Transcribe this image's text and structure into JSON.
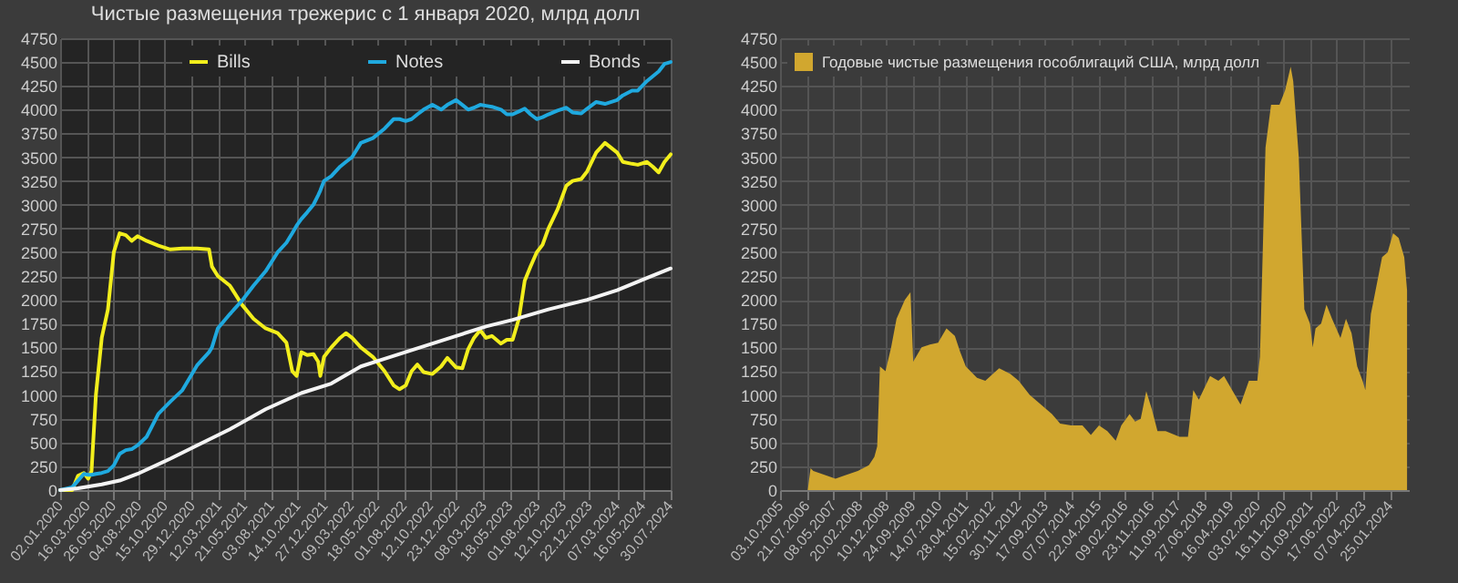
{
  "chart_data": [
    {
      "type": "line",
      "title": "Чистые размещения трежерис с 1 января 2020, млрд долл",
      "legend": "top",
      "grid": true,
      "line_style": "solid",
      "marker": "none",
      "x": [
        "2020-01-02",
        "2020-02-04",
        "2020-02-20",
        "2020-03-07",
        "2020-03-19",
        "2020-03-28",
        "2020-04-09",
        "2020-04-25",
        "2020-05-12",
        "2020-05-28",
        "2020-06-13",
        "2020-06-30",
        "2020-07-16",
        "2020-08-01",
        "2020-08-26",
        "2020-09-27",
        "2020-10-30",
        "2020-12-02",
        "2021-01-11",
        "2021-02-13",
        "2021-02-21",
        "2021-03-09",
        "2021-04-11",
        "2021-05-14",
        "2021-06-15",
        "2021-07-18",
        "2021-08-20",
        "2021-09-13",
        "2021-09-29",
        "2021-10-11",
        "2021-10-24",
        "2021-11-09",
        "2021-11-26",
        "2021-12-09",
        "2021-12-15",
        "2021-12-25",
        "2022-01-14",
        "2022-02-07",
        "2022-02-23",
        "2022-03-12",
        "2022-04-05",
        "2022-05-08",
        "2022-06-09",
        "2022-07-04",
        "2022-07-20",
        "2022-08-06",
        "2022-08-22",
        "2022-09-07",
        "2022-09-24",
        "2022-10-18",
        "2022-11-11",
        "2022-11-28",
        "2022-12-22",
        "2023-01-08",
        "2023-01-24",
        "2023-02-09",
        "2023-02-26",
        "2023-03-14",
        "2023-03-30",
        "2023-04-24",
        "2023-05-10",
        "2023-05-26",
        "2023-06-12",
        "2023-06-28",
        "2023-07-14",
        "2023-07-31",
        "2023-08-16",
        "2023-09-01",
        "2023-09-26",
        "2023-10-20",
        "2023-11-06",
        "2023-11-30",
        "2023-12-16",
        "2024-01-10",
        "2024-02-03",
        "2024-03-07",
        "2024-03-23",
        "2024-04-17",
        "2024-05-03",
        "2024-05-28",
        "2024-06-13",
        "2024-06-29",
        "2024-07-15",
        "2024-08-01"
      ],
      "xlim": [
        "2020-01-02",
        "2024-08-01"
      ],
      "xticks": [
        {
          "value": "2020-01-02",
          "label": "02.01.2020"
        },
        {
          "value": "2020-03-16",
          "label": "16.03.2020"
        },
        {
          "value": "2020-05-26",
          "label": "26.05.2020"
        },
        {
          "value": "2020-08-04",
          "label": "04.08.2020"
        },
        {
          "value": "2020-10-15",
          "label": "15.10.2020"
        },
        {
          "value": "2020-12-29",
          "label": "29.12.2020"
        },
        {
          "value": "2021-03-12",
          "label": "12.03.2021"
        },
        {
          "value": "2021-05-21",
          "label": "21.05.2021"
        },
        {
          "value": "2021-08-03",
          "label": "03.08.2021"
        },
        {
          "value": "2021-10-14",
          "label": "14.10.2021"
        },
        {
          "value": "2021-12-27",
          "label": "27.12.2021"
        },
        {
          "value": "2022-03-09",
          "label": "09.03.2022"
        },
        {
          "value": "2022-05-18",
          "label": "18.05.2022"
        },
        {
          "value": "2022-08-01",
          "label": "01.08.2022"
        },
        {
          "value": "2022-10-12",
          "label": "12.10.2022"
        },
        {
          "value": "2022-12-23",
          "label": "23.12.2022"
        },
        {
          "value": "2023-03-08",
          "label": "08.03.2023"
        },
        {
          "value": "2023-05-18",
          "label": "18.05.2023"
        },
        {
          "value": "2023-08-01",
          "label": "01.08.2023"
        },
        {
          "value": "2023-10-12",
          "label": "12.10.2023"
        },
        {
          "value": "2023-12-22",
          "label": "22.12.2023"
        },
        {
          "value": "2024-03-07",
          "label": "07.03.2024"
        },
        {
          "value": "2024-05-16",
          "label": "16.05.2024"
        },
        {
          "value": "2024-07-30",
          "label": "30.07.2024"
        }
      ],
      "ylim": [
        0,
        4750
      ],
      "yticks": [
        0,
        250,
        500,
        750,
        1000,
        1250,
        1500,
        1750,
        2000,
        2250,
        2500,
        2750,
        3000,
        3250,
        3500,
        3750,
        4000,
        4250,
        4500,
        4750
      ],
      "series": [
        {
          "name": "Bills",
          "color": "#f2ee1c",
          "values": [
            0,
            0,
            150,
            180,
            120,
            200,
            1000,
            1600,
            1900,
            2500,
            2700,
            2680,
            2620,
            2670,
            2620,
            2570,
            2530,
            2540,
            2540,
            2530,
            2350,
            2250,
            2150,
            1950,
            1800,
            1700,
            1650,
            1550,
            1250,
            1200,
            1450,
            1420,
            1430,
            1350,
            1200,
            1400,
            1500,
            1600,
            1650,
            1600,
            1500,
            1400,
            1250,
            1100,
            1060,
            1100,
            1250,
            1320,
            1240,
            1220,
            1300,
            1390,
            1290,
            1280,
            1480,
            1600,
            1680,
            1600,
            1620,
            1540,
            1580,
            1580,
            1800,
            2200,
            2350,
            2500,
            2580,
            2750,
            2950,
            3200,
            3250,
            3270,
            3350,
            3550,
            3650,
            3550,
            3450,
            3430,
            3420,
            3450,
            3400,
            3340,
            3450,
            3530
          ]
        },
        {
          "name": "Notes",
          "color": "#1fa9df",
          "values": [
            0,
            30,
            100,
            170,
            160,
            160,
            170,
            180,
            200,
            260,
            380,
            420,
            430,
            470,
            560,
            800,
            930,
            1050,
            1310,
            1450,
            1500,
            1700,
            1850,
            1990,
            2150,
            2300,
            2500,
            2600,
            2700,
            2780,
            2850,
            2920,
            3000,
            3100,
            3150,
            3250,
            3300,
            3400,
            3450,
            3500,
            3650,
            3700,
            3800,
            3900,
            3900,
            3880,
            3900,
            3950,
            4000,
            4050,
            4000,
            4050,
            4100,
            4050,
            4000,
            4020,
            4050,
            4040,
            4030,
            4000,
            3950,
            3950,
            3980,
            4010,
            3950,
            3900,
            3920,
            3950,
            3990,
            4020,
            3970,
            3960,
            4010,
            4080,
            4060,
            4100,
            4150,
            4200,
            4200,
            4300,
            4350,
            4400,
            4480,
            4500
          ]
        },
        {
          "name": "Bonds",
          "color": "#f4f4f4",
          "x": [
            "2020-01-02",
            "2020-02-20",
            "2020-04-25",
            "2020-06-13",
            "2020-08-01",
            "2020-10-30",
            "2021-01-11",
            "2021-04-11",
            "2021-07-18",
            "2021-10-24",
            "2022-01-14",
            "2022-04-05",
            "2022-06-09",
            "2022-09-07",
            "2022-12-22",
            "2023-03-14",
            "2023-05-26",
            "2023-09-01",
            "2023-12-16",
            "2024-03-07",
            "2024-05-28",
            "2024-08-01"
          ],
          "values": [
            0,
            20,
            60,
            100,
            170,
            330,
            470,
            640,
            850,
            1020,
            1120,
            1300,
            1380,
            1490,
            1620,
            1720,
            1790,
            1900,
            2000,
            2100,
            2230,
            2330
          ]
        }
      ]
    },
    {
      "type": "area",
      "legend": "top left",
      "grid": true,
      "x": [
        "2005-10",
        "2006-08",
        "2006-09",
        "2006-10",
        "2007-03",
        "2007-06",
        "2007-09",
        "2008-02",
        "2008-06",
        "2008-08",
        "2008-09",
        "2008-10",
        "2008-12",
        "2009-02",
        "2009-04",
        "2009-07",
        "2009-09",
        "2009-10",
        "2010-01",
        "2010-04",
        "2010-07",
        "2010-10",
        "2011-01",
        "2011-03",
        "2011-05",
        "2011-09",
        "2011-12",
        "2012-05",
        "2012-09",
        "2012-12",
        "2013-04",
        "2013-08",
        "2013-12",
        "2014-03",
        "2014-07",
        "2014-11",
        "2015-02",
        "2015-05",
        "2015-08",
        "2015-11",
        "2016-01",
        "2016-04",
        "2016-06",
        "2016-08",
        "2016-10",
        "2016-12",
        "2017-02",
        "2017-05",
        "2017-10",
        "2018-01",
        "2018-03",
        "2018-05",
        "2018-09",
        "2018-12",
        "2019-02",
        "2019-05",
        "2019-08",
        "2019-11",
        "2020-02",
        "2020-03",
        "2020-05",
        "2020-07",
        "2020-10",
        "2020-12",
        "2021-02",
        "2021-03",
        "2021-05",
        "2021-07",
        "2021-09",
        "2021-10",
        "2021-11",
        "2022-01",
        "2022-03",
        "2022-05",
        "2022-08",
        "2022-10",
        "2022-12",
        "2023-02",
        "2023-04",
        "2023-05",
        "2023-07",
        "2023-08",
        "2023-11",
        "2024-01",
        "2024-03",
        "2024-05",
        "2024-07",
        "2024-08"
      ],
      "xlim": [
        "2005-10-01",
        "2024-08-20"
      ],
      "xticks": [
        {
          "value": "2005-10-03",
          "label": "03.10.2005"
        },
        {
          "value": "2006-07-21",
          "label": "21.07.2006"
        },
        {
          "value": "2007-05-08",
          "label": "08.05.2007"
        },
        {
          "value": "2008-02-20",
          "label": "20.02.2008"
        },
        {
          "value": "2008-12-10",
          "label": "10.12.2008"
        },
        {
          "value": "2009-09-24",
          "label": "24.09.2009"
        },
        {
          "value": "2010-07-14",
          "label": "14.07.2010"
        },
        {
          "value": "2011-04-28",
          "label": "28.04.2011"
        },
        {
          "value": "2012-02-15",
          "label": "15.02.2012"
        },
        {
          "value": "2012-11-30",
          "label": "30.11.2012"
        },
        {
          "value": "2013-09-17",
          "label": "17.09.2013"
        },
        {
          "value": "2014-07-07",
          "label": "07.07.2014"
        },
        {
          "value": "2015-04-22",
          "label": "22.04.2015"
        },
        {
          "value": "2016-02-09",
          "label": "09.02.2016"
        },
        {
          "value": "2016-11-23",
          "label": "23.11.2016"
        },
        {
          "value": "2017-09-11",
          "label": "11.09.2017"
        },
        {
          "value": "2018-06-27",
          "label": "27.06.2018"
        },
        {
          "value": "2019-04-16",
          "label": "16.04.2019"
        },
        {
          "value": "2020-02-03",
          "label": "03.02.2020"
        },
        {
          "value": "2020-11-16",
          "label": "16.11.2020"
        },
        {
          "value": "2021-09-01",
          "label": "01.09.2021"
        },
        {
          "value": "2022-06-17",
          "label": "17.06.2022"
        },
        {
          "value": "2023-04-07",
          "label": "07.04.2023"
        },
        {
          "value": "2024-01-25",
          "label": "25.01.2024"
        }
      ],
      "ylim": [
        0,
        4750
      ],
      "yticks": [
        0,
        250,
        500,
        750,
        1000,
        1250,
        1500,
        1750,
        2000,
        2250,
        2500,
        2750,
        3000,
        3250,
        3500,
        3750,
        4000,
        4250,
        4500,
        4750
      ],
      "series": [
        {
          "name": "Годовые чистые размещения гособлигаций США, млрд долл",
          "color": "#d1a72f",
          "values": [
            0,
            0,
            230,
            200,
            150,
            120,
            150,
            200,
            260,
            350,
            460,
            1300,
            1250,
            1500,
            1800,
            2000,
            2080,
            1350,
            1500,
            1530,
            1550,
            1700,
            1620,
            1450,
            1300,
            1180,
            1150,
            1280,
            1220,
            1150,
            1000,
            900,
            800,
            700,
            680,
            680,
            580,
            680,
            620,
            520,
            680,
            800,
            720,
            750,
            1040,
            850,
            620,
            620,
            560,
            560,
            1050,
            950,
            1200,
            1150,
            1200,
            1050,
            900,
            1150,
            1150,
            1400,
            3600,
            4050,
            4050,
            4200,
            4450,
            4300,
            3500,
            1900,
            1750,
            1500,
            1700,
            1750,
            1950,
            1800,
            1600,
            1800,
            1650,
            1300,
            1150,
            1050,
            1850,
            2000,
            2450,
            2500,
            2700,
            2650,
            2450,
            2100
          ]
        }
      ]
    }
  ]
}
